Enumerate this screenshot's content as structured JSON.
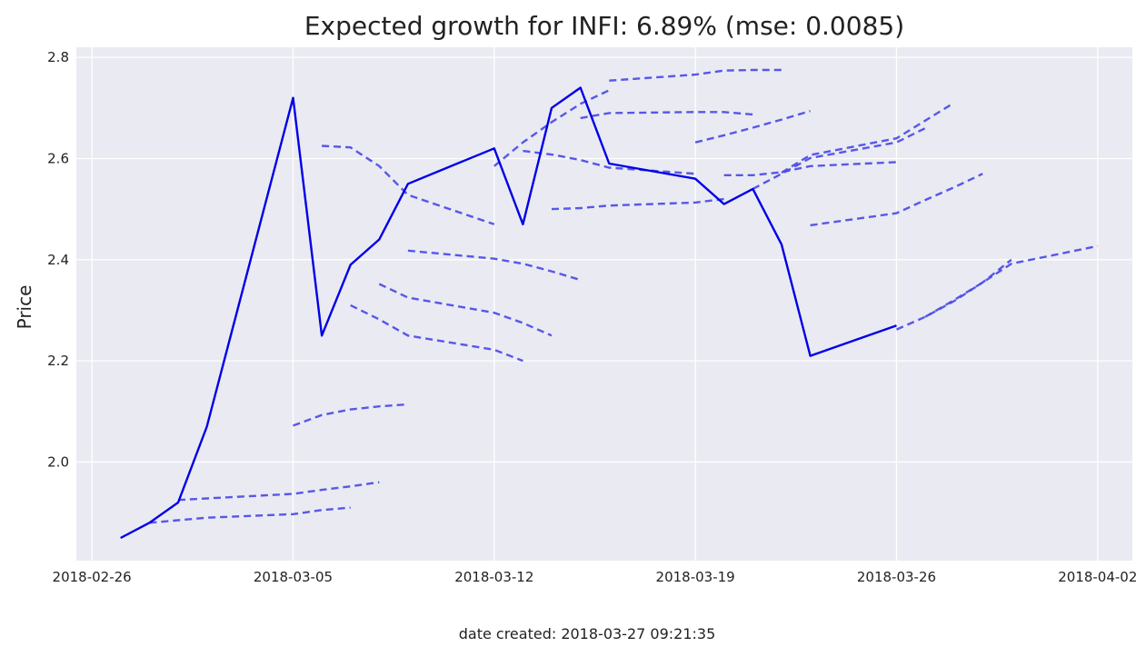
{
  "chart_data": {
    "type": "line",
    "title": "Expected growth for INFI: 6.89% (mse: 0.0085)",
    "xlabel": "",
    "ylabel": "Price",
    "footer": "date created: 2018-03-27 09:21:35",
    "xlim": [
      "2018-02-25T11:00",
      "2018-04-03T05:00"
    ],
    "ylim": [
      1.805,
      2.82
    ],
    "grid": true,
    "x_ticks": [
      "2018-02-26",
      "2018-03-05",
      "2018-03-12",
      "2018-03-19",
      "2018-03-26",
      "2018-04-02"
    ],
    "y_ticks": [
      2.0,
      2.2,
      2.4,
      2.6,
      2.8
    ],
    "y_tick_labels": [
      "2.0",
      "2.2",
      "2.4",
      "2.6",
      "2.8"
    ],
    "colors": {
      "actual": "#0000e6",
      "forecast": "#4f4fe8",
      "background": "#eaeaf2"
    },
    "actual": {
      "x": [
        "2018-02-27",
        "2018-02-28",
        "2018-03-01",
        "2018-03-02",
        "2018-03-05",
        "2018-03-06",
        "2018-03-07",
        "2018-03-08",
        "2018-03-09",
        "2018-03-12",
        "2018-03-13",
        "2018-03-14",
        "2018-03-15",
        "2018-03-16",
        "2018-03-19",
        "2018-03-20",
        "2018-03-21",
        "2018-03-22",
        "2018-03-23",
        "2018-03-26"
      ],
      "values": [
        1.85,
        1.88,
        1.92,
        2.07,
        2.72,
        2.25,
        2.39,
        2.44,
        2.55,
        2.62,
        2.47,
        2.7,
        2.74,
        2.59,
        2.56,
        2.51,
        2.54,
        2.43,
        2.21,
        2.27
      ]
    },
    "forecasts": [
      {
        "x": [
          "2018-02-28",
          "2018-03-01",
          "2018-03-02",
          "2018-03-05",
          "2018-03-06",
          "2018-03-07"
        ],
        "values": [
          1.88,
          1.885,
          1.89,
          1.897,
          1.905,
          1.91
        ]
      },
      {
        "x": [
          "2018-03-01",
          "2018-03-02",
          "2018-03-05",
          "2018-03-06",
          "2018-03-07",
          "2018-03-08"
        ],
        "values": [
          1.925,
          1.928,
          1.937,
          1.945,
          1.952,
          1.96
        ]
      },
      {
        "x": [
          "2018-03-05",
          "2018-03-06",
          "2018-03-07",
          "2018-03-08",
          "2018-03-09"
        ],
        "values": [
          2.072,
          2.093,
          2.104,
          2.11,
          2.114
        ]
      },
      {
        "x": [
          "2018-03-06",
          "2018-03-07",
          "2018-03-08",
          "2018-03-09",
          "2018-03-12"
        ],
        "values": [
          2.625,
          2.622,
          2.585,
          2.528,
          2.47
        ]
      },
      {
        "x": [
          "2018-03-07",
          "2018-03-08",
          "2018-03-09",
          "2018-03-12",
          "2018-03-13"
        ],
        "values": [
          2.31,
          2.282,
          2.25,
          2.222,
          2.2
        ]
      },
      {
        "x": [
          "2018-03-08",
          "2018-03-09",
          "2018-03-12",
          "2018-03-13",
          "2018-03-14"
        ],
        "values": [
          2.352,
          2.325,
          2.295,
          2.275,
          2.25
        ]
      },
      {
        "x": [
          "2018-03-09",
          "2018-03-12",
          "2018-03-13",
          "2018-03-14",
          "2018-03-15"
        ],
        "values": [
          2.418,
          2.402,
          2.392,
          2.377,
          2.36
        ]
      },
      {
        "x": [
          "2018-03-12",
          "2018-03-13",
          "2018-03-14",
          "2018-03-15",
          "2018-03-16"
        ],
        "values": [
          2.585,
          2.632,
          2.672,
          2.708,
          2.735
        ]
      },
      {
        "x": [
          "2018-03-13",
          "2018-03-14",
          "2018-03-15",
          "2018-03-16",
          "2018-03-19"
        ],
        "values": [
          2.615,
          2.608,
          2.597,
          2.582,
          2.57
        ]
      },
      {
        "x": [
          "2018-03-14",
          "2018-03-15",
          "2018-03-16",
          "2018-03-19",
          "2018-03-20"
        ],
        "values": [
          2.5,
          2.502,
          2.507,
          2.513,
          2.52
        ]
      },
      {
        "x": [
          "2018-03-15",
          "2018-03-16",
          "2018-03-19",
          "2018-03-20",
          "2018-03-21"
        ],
        "values": [
          2.68,
          2.69,
          2.692,
          2.692,
          2.687
        ]
      },
      {
        "x": [
          "2018-03-16",
          "2018-03-19",
          "2018-03-20",
          "2018-03-21",
          "2018-03-22"
        ],
        "values": [
          2.754,
          2.766,
          2.774,
          2.775,
          2.775
        ]
      },
      {
        "x": [
          "2018-03-19",
          "2018-03-20",
          "2018-03-21",
          "2018-03-22",
          "2018-03-23"
        ],
        "values": [
          2.632,
          2.646,
          2.661,
          2.677,
          2.694
        ]
      },
      {
        "x": [
          "2018-03-20",
          "2018-03-21",
          "2018-03-22",
          "2018-03-23",
          "2018-03-26"
        ],
        "values": [
          2.567,
          2.567,
          2.573,
          2.585,
          2.593
        ]
      },
      {
        "x": [
          "2018-03-21",
          "2018-03-22",
          "2018-03-23",
          "2018-03-26",
          "2018-03-27"
        ],
        "values": [
          2.54,
          2.57,
          2.601,
          2.632,
          2.66
        ]
      },
      {
        "x": [
          "2018-03-22",
          "2018-03-23",
          "2018-03-26",
          "2018-03-27",
          "2018-03-28"
        ],
        "values": [
          2.572,
          2.607,
          2.64,
          2.675,
          2.71
        ]
      },
      {
        "x": [
          "2018-03-23",
          "2018-03-26",
          "2018-03-27",
          "2018-03-28",
          "2018-03-29"
        ],
        "values": [
          2.468,
          2.492,
          2.518,
          2.543,
          2.57
        ]
      },
      {
        "x": [
          "2018-03-26",
          "2018-03-27",
          "2018-03-28",
          "2018-03-29",
          "2018-03-30"
        ],
        "values": [
          2.262,
          2.287,
          2.318,
          2.355,
          2.4
        ]
      },
      {
        "x": [
          "2018-03-27",
          "2018-03-28",
          "2018-03-29",
          "2018-03-30",
          "2018-04-02"
        ],
        "values": [
          2.287,
          2.32,
          2.355,
          2.392,
          2.427
        ]
      }
    ]
  }
}
